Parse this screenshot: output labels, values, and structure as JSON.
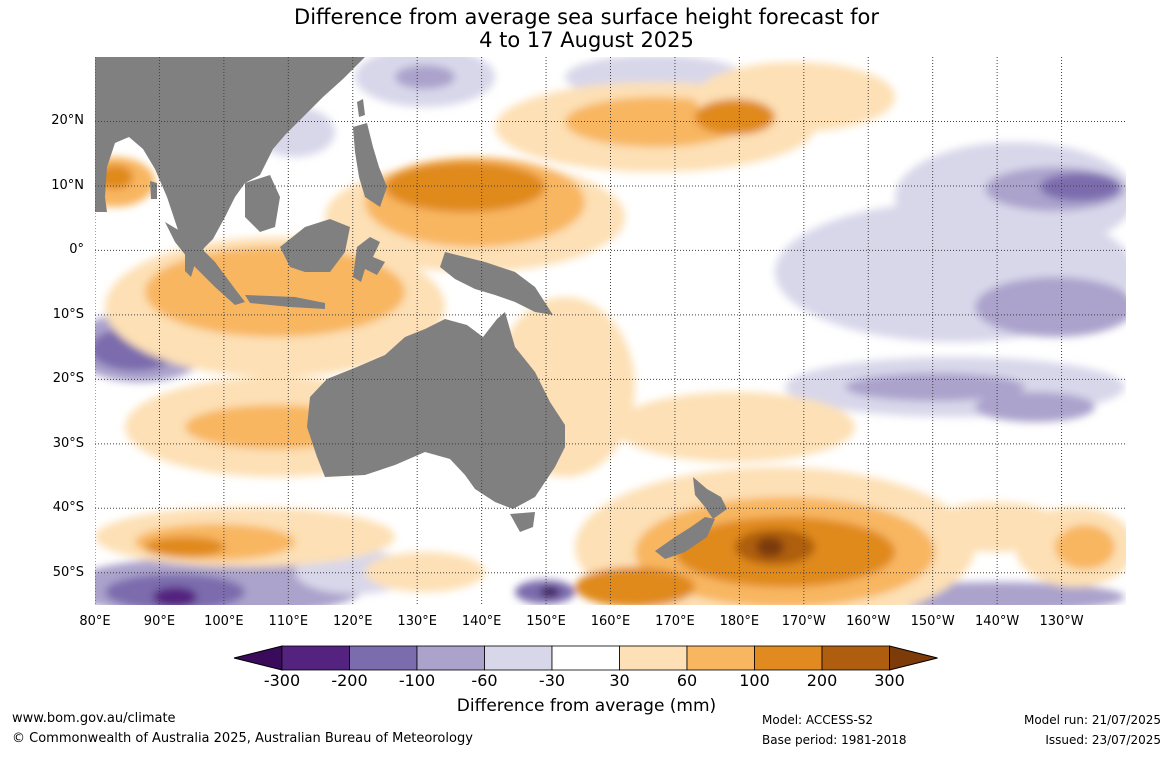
{
  "title": {
    "line1": "Difference from average sea surface height forecast for",
    "line2": "4 to 17 August 2025"
  },
  "lat_labels": [
    "20°N",
    "10°N",
    "0°",
    "10°S",
    "20°S",
    "30°S",
    "40°S",
    "50°S"
  ],
  "lat_values": [
    20,
    10,
    0,
    -10,
    -20,
    -30,
    -40,
    -50
  ],
  "lon_labels": [
    "80°E",
    "90°E",
    "100°E",
    "110°E",
    "120°E",
    "130°E",
    "140°E",
    "150°E",
    "160°E",
    "170°E",
    "180°E",
    "170°W",
    "160°W",
    "150°W",
    "140°W",
    "130°W"
  ],
  "lon_values": [
    80,
    90,
    100,
    110,
    120,
    130,
    140,
    150,
    160,
    170,
    180,
    190,
    200,
    210,
    220,
    230
  ],
  "map_extent": {
    "lon_min": 80,
    "lon_max": 240,
    "lat_min": -55,
    "lat_max": 30
  },
  "colorbar": {
    "ticks": [
      "-300",
      "-200",
      "-100",
      "-60",
      "-30",
      "30",
      "60",
      "100",
      "200",
      "300"
    ],
    "colors": [
      "#3a0b5a",
      "#54237f",
      "#7b6cad",
      "#aba3cc",
      "#d8d7ea",
      "#ffffff",
      "#fde0b5",
      "#f8b661",
      "#e08a1f",
      "#af5e0f",
      "#7c3b08"
    ],
    "label": "Difference from average (mm)"
  },
  "colors": {
    "land": "#808080",
    "grid": "#404040"
  },
  "footer": {
    "url": "www.bom.gov.au/climate",
    "copyright": "© Commonwealth of Australia 2025, Australian Bureau of Meteorology",
    "model": "Model: ACCESS-S2",
    "base_period": "Base period: 1981-2018",
    "model_run": "Model run: 21/07/2025",
    "issued": "Issued: 23/07/2025"
  }
}
